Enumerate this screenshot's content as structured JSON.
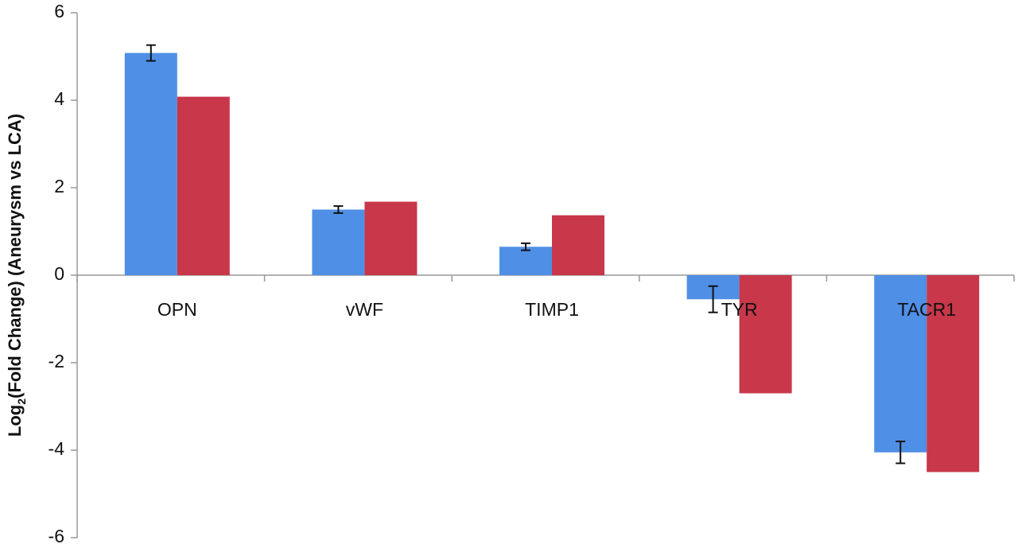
{
  "chart_data": {
    "type": "bar",
    "y_label": {
      "base": "Log",
      "subscript": "2",
      "rest": "(Fold Change) (Aneurysm vs LCA)"
    },
    "categories": [
      "OPN",
      "vWF",
      "TIMP1",
      "TYR",
      "TACR1"
    ],
    "series": [
      {
        "color": "#4f8fe6",
        "values": [
          5.08,
          1.5,
          0.65,
          -0.55,
          -4.05
        ],
        "errors": [
          0.18,
          0.08,
          0.08,
          0.3,
          0.25
        ]
      },
      {
        "color": "#c8374a",
        "values": [
          4.08,
          1.68,
          1.37,
          -2.7,
          -4.5
        ]
      }
    ],
    "ylim": [
      -6,
      6
    ],
    "yticks": [
      -6,
      -4,
      -2,
      0,
      2,
      4,
      6
    ],
    "grid": false
  }
}
